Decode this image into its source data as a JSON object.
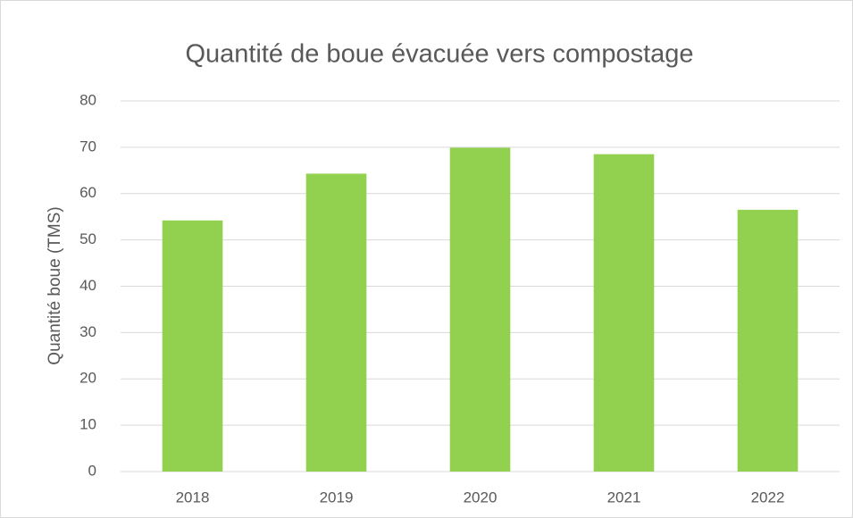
{
  "chart_data": {
    "type": "bar",
    "title": "Quantité de boue évacuée vers compostage",
    "ylabel": "Quantité boue (TMS)",
    "categories": [
      "2018",
      "2019",
      "2020",
      "2021",
      "2022"
    ],
    "values": [
      54.2,
      64.3,
      69.9,
      68.5,
      56.5
    ],
    "color": "#92d050",
    "ylim": [
      0,
      80
    ],
    "yticks": [
      0,
      10,
      20,
      30,
      40,
      50,
      60,
      70,
      80
    ],
    "grid": true
  }
}
